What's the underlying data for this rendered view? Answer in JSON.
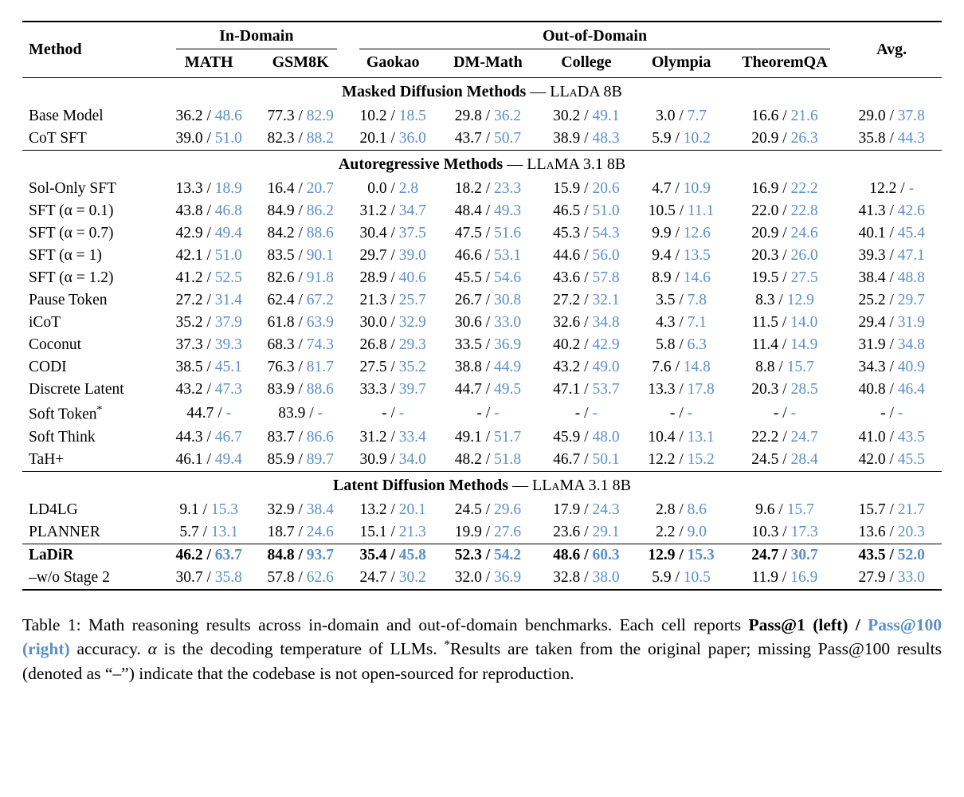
{
  "accent_blue": "#5d8fc7",
  "table": {
    "method_header": "Method",
    "avg_header": "Avg.",
    "groups": [
      "In-Domain",
      "Out-of-Domain"
    ],
    "columns": [
      "MATH",
      "GSM8K",
      "Gaokao",
      "DM-Math",
      "College",
      "Olympia",
      "TheoremQA"
    ],
    "sections": [
      {
        "header": {
          "title": "Masked Diffusion Methods",
          "separator": " — ",
          "model": "LLaDA 8B"
        },
        "rows": [
          {
            "method": "Base Model",
            "bold": false,
            "cells": [
              [
                "36.2",
                "48.6"
              ],
              [
                "77.3",
                "82.9"
              ],
              [
                "10.2",
                "18.5"
              ],
              [
                "29.8",
                "36.2"
              ],
              [
                "30.2",
                "49.1"
              ],
              [
                "3.0",
                "7.7"
              ],
              [
                "16.6",
                "21.6"
              ],
              [
                "29.0",
                "37.8"
              ]
            ]
          },
          {
            "method": "CoT SFT",
            "bold": false,
            "cells": [
              [
                "39.0",
                "51.0"
              ],
              [
                "82.3",
                "88.2"
              ],
              [
                "20.1",
                "36.0"
              ],
              [
                "43.7",
                "50.7"
              ],
              [
                "38.9",
                "48.3"
              ],
              [
                "5.9",
                "10.2"
              ],
              [
                "20.9",
                "26.3"
              ],
              [
                "35.8",
                "44.3"
              ]
            ]
          }
        ]
      },
      {
        "header": {
          "title": "Autoregressive Methods",
          "separator": " — ",
          "model": "LLaMA 3.1 8B"
        },
        "rows": [
          {
            "method": "Sol-Only SFT",
            "bold": false,
            "cells": [
              [
                "13.3",
                "18.9"
              ],
              [
                "16.4",
                "20.7"
              ],
              [
                "0.0",
                "2.8"
              ],
              [
                "18.2",
                "23.3"
              ],
              [
                "15.9",
                "20.6"
              ],
              [
                "4.7",
                "10.9"
              ],
              [
                "16.9",
                "22.2"
              ],
              [
                "12.2",
                "-"
              ]
            ]
          },
          {
            "method": "SFT (α = 0.1)",
            "bold": false,
            "cells": [
              [
                "43.8",
                "46.8"
              ],
              [
                "84.9",
                "86.2"
              ],
              [
                "31.2",
                "34.7"
              ],
              [
                "48.4",
                "49.3"
              ],
              [
                "46.5",
                "51.0"
              ],
              [
                "10.5",
                "11.1"
              ],
              [
                "22.0",
                "22.8"
              ],
              [
                "41.3",
                "42.6"
              ]
            ]
          },
          {
            "method": "SFT (α = 0.7)",
            "bold": false,
            "cells": [
              [
                "42.9",
                "49.4"
              ],
              [
                "84.2",
                "88.6"
              ],
              [
                "30.4",
                "37.5"
              ],
              [
                "47.5",
                "51.6"
              ],
              [
                "45.3",
                "54.3"
              ],
              [
                "9.9",
                "12.6"
              ],
              [
                "20.9",
                "24.6"
              ],
              [
                "40.1",
                "45.4"
              ]
            ]
          },
          {
            "method": "SFT (α = 1)",
            "bold": false,
            "cells": [
              [
                "42.1",
                "51.0"
              ],
              [
                "83.5",
                "90.1"
              ],
              [
                "29.7",
                "39.0"
              ],
              [
                "46.6",
                "53.1"
              ],
              [
                "44.6",
                "56.0"
              ],
              [
                "9.4",
                "13.5"
              ],
              [
                "20.3",
                "26.0"
              ],
              [
                "39.3",
                "47.1"
              ]
            ]
          },
          {
            "method": "SFT (α = 1.2)",
            "bold": false,
            "cells": [
              [
                "41.2",
                "52.5"
              ],
              [
                "82.6",
                "91.8"
              ],
              [
                "28.9",
                "40.6"
              ],
              [
                "45.5",
                "54.6"
              ],
              [
                "43.6",
                "57.8"
              ],
              [
                "8.9",
                "14.6"
              ],
              [
                "19.5",
                "27.5"
              ],
              [
                "38.4",
                "48.8"
              ]
            ]
          },
          {
            "method": "Pause Token",
            "bold": false,
            "cells": [
              [
                "27.2",
                "31.4"
              ],
              [
                "62.4",
                "67.2"
              ],
              [
                "21.3",
                "25.7"
              ],
              [
                "26.7",
                "30.8"
              ],
              [
                "27.2",
                "32.1"
              ],
              [
                "3.5",
                "7.8"
              ],
              [
                "8.3",
                "12.9"
              ],
              [
                "25.2",
                "29.7"
              ]
            ]
          },
          {
            "method": "iCoT",
            "bold": false,
            "cells": [
              [
                "35.2",
                "37.9"
              ],
              [
                "61.8",
                "63.9"
              ],
              [
                "30.0",
                "32.9"
              ],
              [
                "30.6",
                "33.0"
              ],
              [
                "32.6",
                "34.8"
              ],
              [
                "4.3",
                "7.1"
              ],
              [
                "11.5",
                "14.0"
              ],
              [
                "29.4",
                "31.9"
              ]
            ]
          },
          {
            "method": "Coconut",
            "bold": false,
            "cells": [
              [
                "37.3",
                "39.3"
              ],
              [
                "68.3",
                "74.3"
              ],
              [
                "26.8",
                "29.3"
              ],
              [
                "33.5",
                "36.9"
              ],
              [
                "40.2",
                "42.9"
              ],
              [
                "5.8",
                "6.3"
              ],
              [
                "11.4",
                "14.9"
              ],
              [
                "31.9",
                "34.8"
              ]
            ]
          },
          {
            "method": "CODI",
            "bold": false,
            "cells": [
              [
                "38.5",
                "45.1"
              ],
              [
                "76.3",
                "81.7"
              ],
              [
                "27.5",
                "35.2"
              ],
              [
                "38.8",
                "44.9"
              ],
              [
                "43.2",
                "49.0"
              ],
              [
                "7.6",
                "14.8"
              ],
              [
                "8.8",
                "15.7"
              ],
              [
                "34.3",
                "40.9"
              ]
            ]
          },
          {
            "method": "Discrete Latent",
            "bold": false,
            "cells": [
              [
                "43.2",
                "47.3"
              ],
              [
                "83.9",
                "88.6"
              ],
              [
                "33.3",
                "39.7"
              ],
              [
                "44.7",
                "49.5"
              ],
              [
                "47.1",
                "53.7"
              ],
              [
                "13.3",
                "17.8"
              ],
              [
                "20.3",
                "28.5"
              ],
              [
                "40.8",
                "46.4"
              ]
            ]
          },
          {
            "method": "Soft Token*",
            "bold": false,
            "cells": [
              [
                "44.7",
                "-"
              ],
              [
                "83.9",
                "-"
              ],
              [
                "-",
                "-"
              ],
              [
                "-",
                "-"
              ],
              [
                "-",
                "-"
              ],
              [
                "-",
                "-"
              ],
              [
                "-",
                "-"
              ],
              [
                "-",
                "-"
              ]
            ]
          },
          {
            "method": "Soft Think",
            "bold": false,
            "cells": [
              [
                "44.3",
                "46.7"
              ],
              [
                "83.7",
                "86.6"
              ],
              [
                "31.2",
                "33.4"
              ],
              [
                "49.1",
                "51.7"
              ],
              [
                "45.9",
                "48.0"
              ],
              [
                "10.4",
                "13.1"
              ],
              [
                "22.2",
                "24.7"
              ],
              [
                "41.0",
                "43.5"
              ]
            ]
          },
          {
            "method": "TaH+",
            "bold": false,
            "cells": [
              [
                "46.1",
                "49.4"
              ],
              [
                "85.9",
                "89.7"
              ],
              [
                "30.9",
                "34.0"
              ],
              [
                "48.2",
                "51.8"
              ],
              [
                "46.7",
                "50.1"
              ],
              [
                "12.2",
                "15.2"
              ],
              [
                "24.5",
                "28.4"
              ],
              [
                "42.0",
                "45.5"
              ]
            ]
          }
        ]
      },
      {
        "header": {
          "title": "Latent Diffusion Methods",
          "separator": " — ",
          "model": "LLaMA 3.1 8B"
        },
        "rows": [
          {
            "method": "LD4LG",
            "bold": false,
            "cells": [
              [
                "9.1",
                "15.3"
              ],
              [
                "32.9",
                "38.4"
              ],
              [
                "13.2",
                "20.1"
              ],
              [
                "24.5",
                "29.6"
              ],
              [
                "17.9",
                "24.3"
              ],
              [
                "2.8",
                "8.6"
              ],
              [
                "9.6",
                "15.7"
              ],
              [
                "15.7",
                "21.7"
              ]
            ]
          },
          {
            "method": "PLANNER",
            "bold": false,
            "cells": [
              [
                "5.7",
                "13.1"
              ],
              [
                "18.7",
                "24.6"
              ],
              [
                "15.1",
                "21.3"
              ],
              [
                "19.9",
                "27.6"
              ],
              [
                "23.6",
                "29.1"
              ],
              [
                "2.2",
                "9.0"
              ],
              [
                "10.3",
                "17.3"
              ],
              [
                "13.6",
                "20.3"
              ]
            ]
          }
        ]
      },
      {
        "header": null,
        "rows": [
          {
            "method": "LaDiR",
            "bold": true,
            "cells": [
              [
                "46.2",
                "63.7"
              ],
              [
                "84.8",
                "93.7"
              ],
              [
                "35.4",
                "45.8"
              ],
              [
                "52.3",
                "54.2"
              ],
              [
                "48.6",
                "60.3"
              ],
              [
                "12.9",
                "15.3"
              ],
              [
                "24.7",
                "30.7"
              ],
              [
                "43.5",
                "52.0"
              ]
            ]
          },
          {
            "method": "–w/o Stage 2",
            "bold": false,
            "cells": [
              [
                "30.7",
                "35.8"
              ],
              [
                "57.8",
                "62.6"
              ],
              [
                "24.7",
                "30.2"
              ],
              [
                "32.0",
                "36.9"
              ],
              [
                "32.8",
                "38.0"
              ],
              [
                "5.9",
                "10.5"
              ],
              [
                "11.9",
                "16.9"
              ],
              [
                "27.9",
                "33.0"
              ]
            ]
          }
        ]
      }
    ]
  },
  "caption": {
    "parts": [
      {
        "text": "Table 1: Math reasoning results across in-domain and out-of-domain benchmarks. Each cell reports ",
        "style": "normal"
      },
      {
        "text": "Pass@1 (left)",
        "style": "bold"
      },
      {
        "text": " / ",
        "style": "bold"
      },
      {
        "text": "Pass@100 (right)",
        "style": "bold-blue"
      },
      {
        "text": " accuracy. ",
        "style": "normal"
      },
      {
        "text": "α",
        "style": "italic"
      },
      {
        "text": " is the decoding temperature of LLMs. ",
        "style": "normal"
      },
      {
        "text": "*",
        "style": "sup"
      },
      {
        "text": "Results are taken from the original paper; missing Pass@100 results (denoted as “–”) indicate that the codebase is not open-sourced for reproduction.",
        "style": "normal"
      }
    ]
  }
}
